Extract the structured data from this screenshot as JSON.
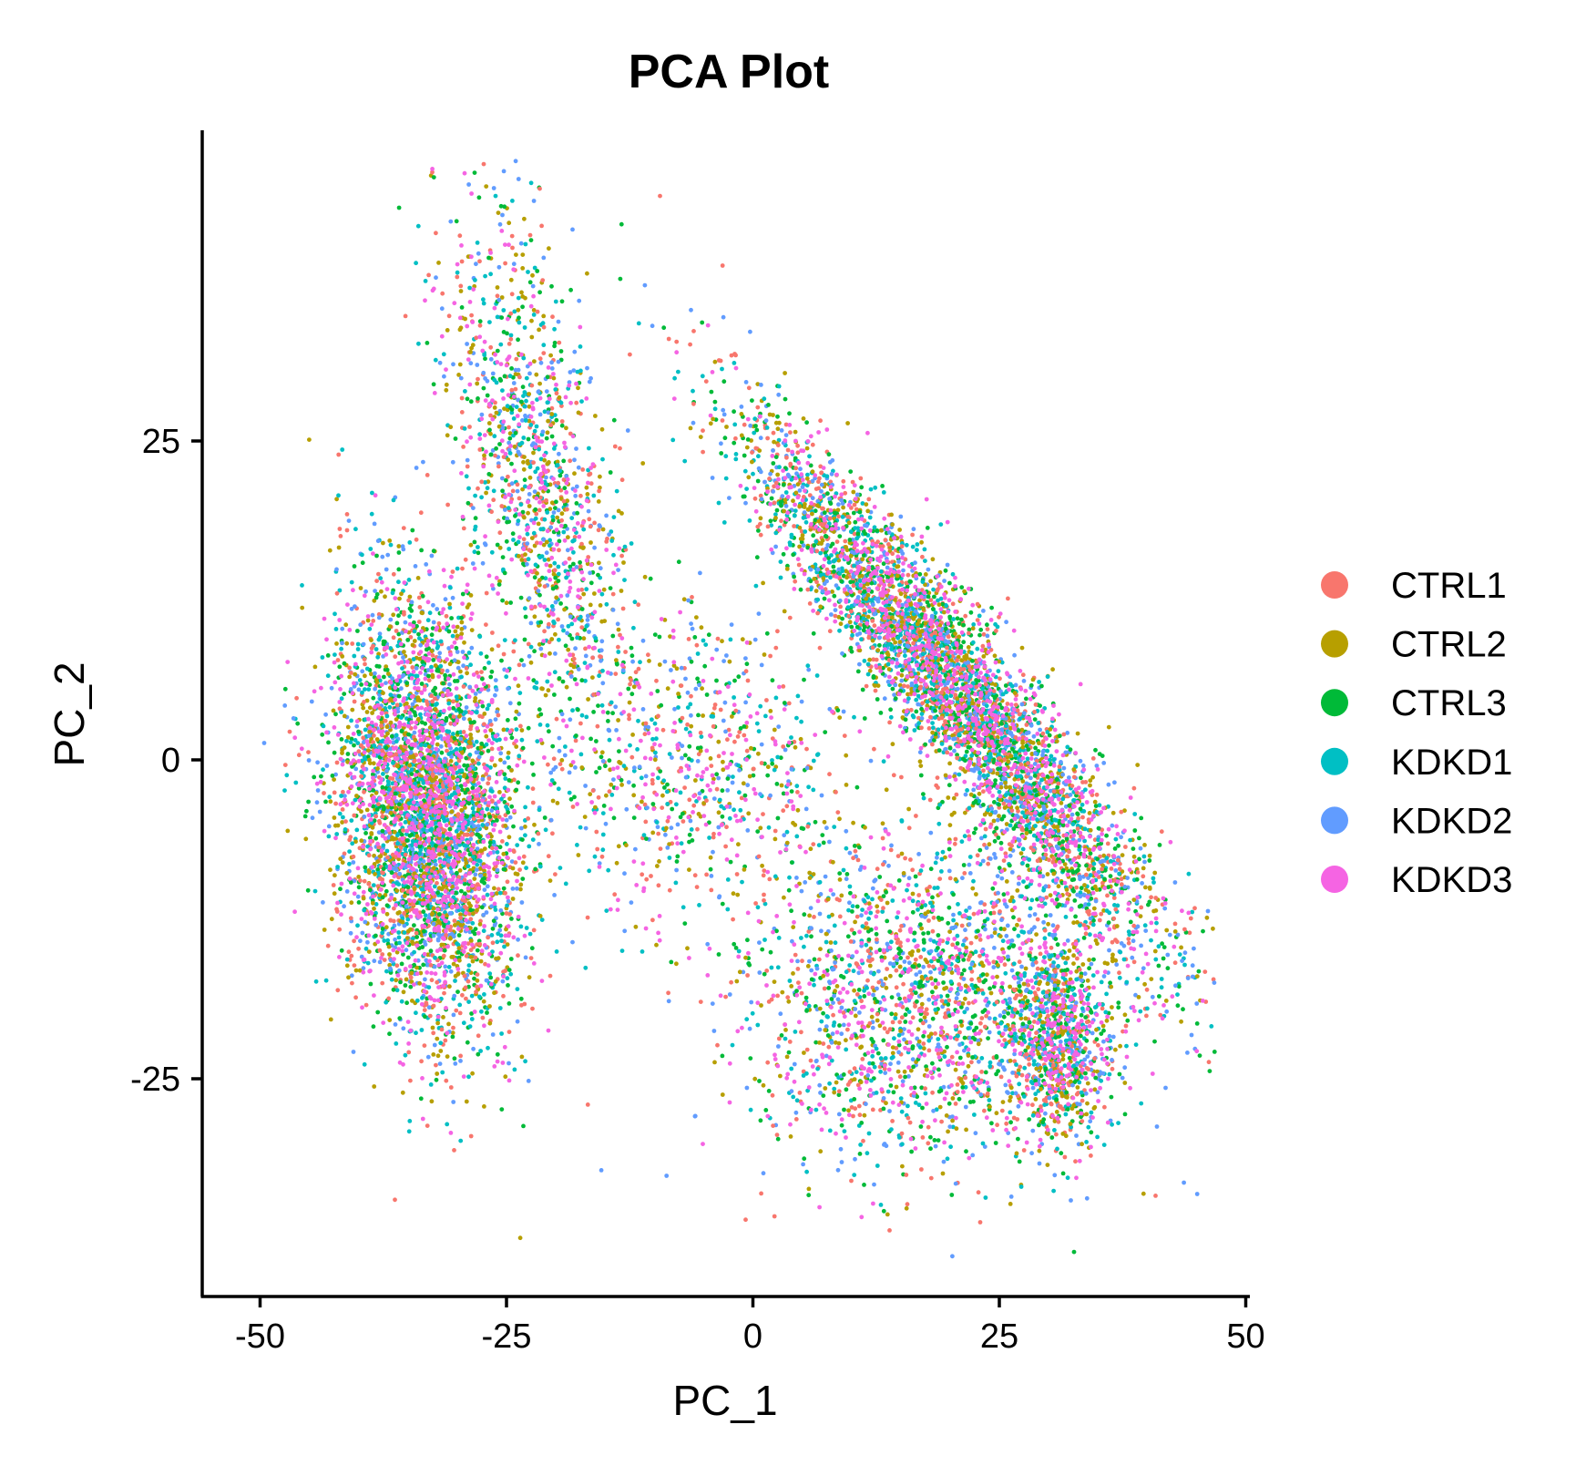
{
  "chart_data": {
    "type": "scatter",
    "title": "PCA Plot",
    "xlabel": "PC_1",
    "ylabel": "PC_2",
    "xlim": [
      -56,
      50
    ],
    "ylim": [
      -42,
      49
    ],
    "xticks": [
      -50,
      -25,
      0,
      25,
      50
    ],
    "xtick_labels": [
      "-50",
      "-25",
      "0",
      "25",
      "50"
    ],
    "yticks": [
      -25,
      0,
      25
    ],
    "ytick_labels": [
      "-25",
      "0",
      "25"
    ],
    "grid": false,
    "legend_position": "right",
    "series": [
      {
        "name": "CTRL1",
        "color": "#F8766D"
      },
      {
        "name": "CTRL2",
        "color": "#B79F00"
      },
      {
        "name": "CTRL3",
        "color": "#00BA38"
      },
      {
        "name": "KDKD1",
        "color": "#00BFC4"
      },
      {
        "name": "KDKD2",
        "color": "#619CFF"
      },
      {
        "name": "KDKD3",
        "color": "#F564E3"
      }
    ],
    "clusters": [
      {
        "label": "left cluster",
        "center": [
          -33,
          -4
        ],
        "spread": [
          4.5,
          8.5
        ],
        "rotation": 0.15,
        "weight": 0.3
      },
      {
        "label": "upper-left arm",
        "center": [
          -22,
          22
        ],
        "spread": [
          3.5,
          11
        ],
        "rotation": 0.25,
        "weight": 0.08
      },
      {
        "label": "right diagonal band",
        "center": [
          20,
          6
        ],
        "spread": [
          14,
          2.6
        ],
        "rotation": -0.78,
        "weight": 0.3
      },
      {
        "label": "lower-right cluster",
        "center": [
          31,
          -22
        ],
        "spread": [
          2.5,
          4
        ],
        "rotation": 0.0,
        "weight": 0.06
      },
      {
        "label": "lower-middle diffuse",
        "center": [
          18,
          -18
        ],
        "spread": [
          10,
          7
        ],
        "rotation": 0.0,
        "weight": 0.14
      },
      {
        "label": "central bridge",
        "center": [
          -6,
          0
        ],
        "spread": [
          8,
          6
        ],
        "rotation": 0.0,
        "weight": 0.05
      }
    ],
    "point_count": 14000
  }
}
